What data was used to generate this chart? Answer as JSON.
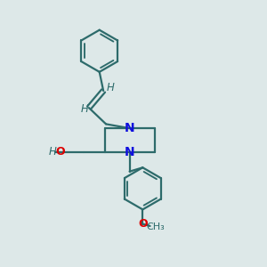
{
  "bg_color": "#dde8e8",
  "bond_color": "#2d6b6b",
  "n_color": "#1010dd",
  "o_color": "#dd0000",
  "line_width": 1.6,
  "font_size": 8.5,
  "figsize": [
    3.0,
    3.0
  ],
  "dpi": 100,
  "xlim": [
    0,
    10
  ],
  "ylim": [
    0,
    10
  ]
}
